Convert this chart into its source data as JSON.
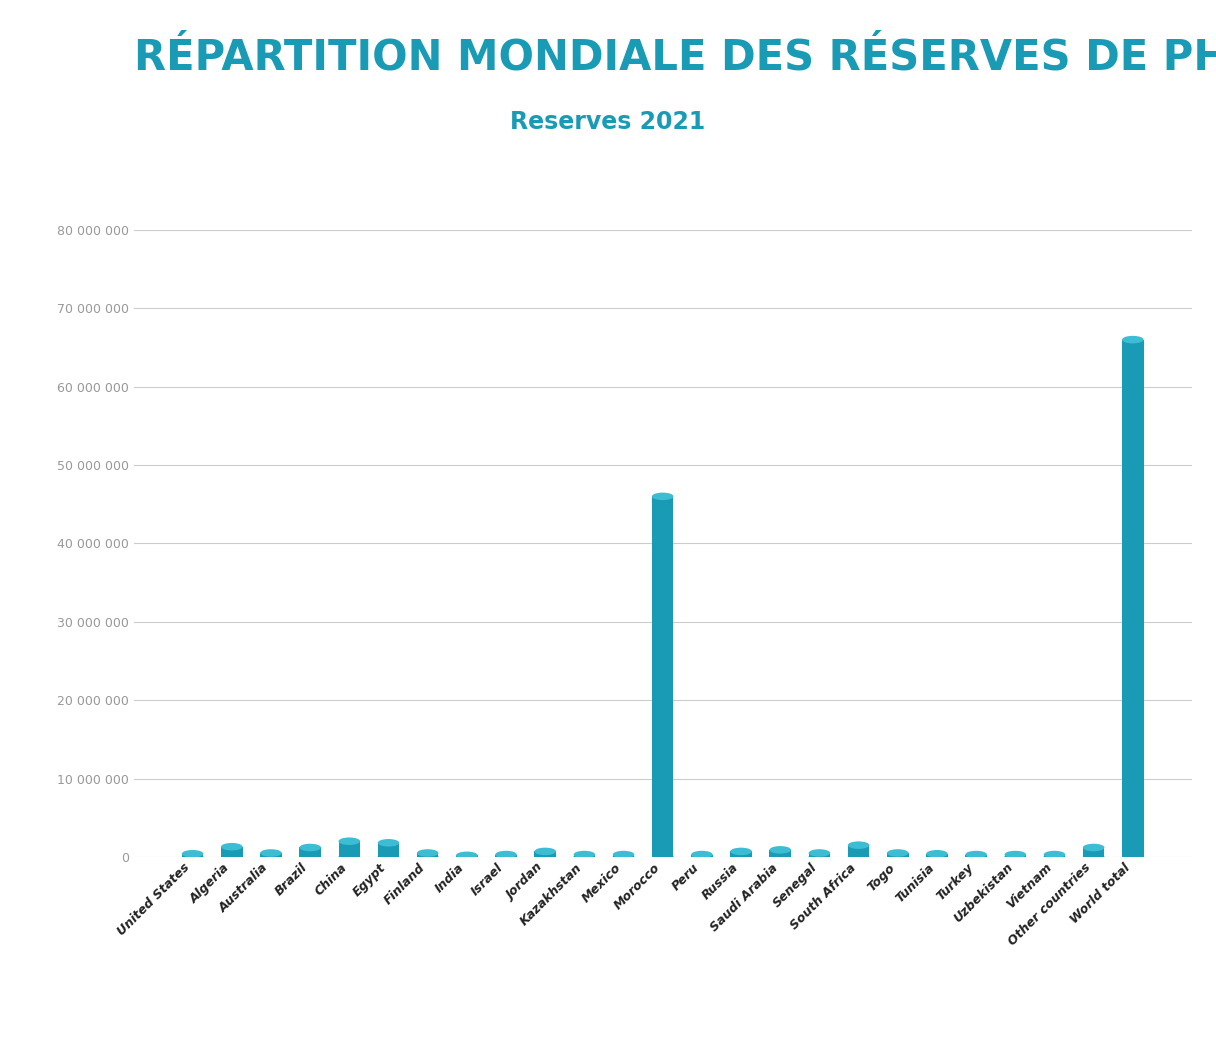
{
  "title": "RÉPARTITION MONDIALE DES RÉSERVES DE PHOSPHATES",
  "subtitle": "Reserves 2021",
  "title_color": "#1a9bb5",
  "subtitle_color": "#1a9bb5",
  "title_fontsize": 30,
  "subtitle_fontsize": 17,
  "bar_color": "#1a9bb5",
  "bar_top_color": "#3dbdd4",
  "categories": [
    "United States",
    "Algeria",
    "Australia",
    "Brazil",
    "China",
    "Egypt",
    "Finland",
    "India",
    "Israel",
    "Jordan",
    "Kazakhstan",
    "Mexico",
    "Morocco",
    "Peru",
    "Russia",
    "Saudi Arabia",
    "Senegal",
    "South Africa",
    "Togo",
    "Tunisia",
    "Turkey",
    "Uzbekistan",
    "Vietnam",
    "Other countries",
    "World total"
  ],
  "values": [
    400000,
    1300000,
    500000,
    1200000,
    2000000,
    1800000,
    500000,
    200000,
    300000,
    700000,
    300000,
    300000,
    46000000,
    300000,
    700000,
    900000,
    500000,
    1500000,
    500000,
    400000,
    300000,
    300000,
    300000,
    1200000,
    66000000
  ],
  "ylim": [
    0,
    80000000
  ],
  "yticks": [
    0,
    10000000,
    20000000,
    30000000,
    40000000,
    50000000,
    60000000,
    70000000,
    80000000
  ],
  "ytick_labels": [
    "0",
    "10 000 000",
    "20 000 000",
    "30 000 000",
    "40 000 000",
    "50 000 000",
    "60 000 000",
    "70 000 000",
    "80 000 000"
  ],
  "background_color": "#ffffff",
  "grid_color": "#cccccc",
  "tick_color": "#999999",
  "xtick_fontsize": 9,
  "ytick_fontsize": 9
}
